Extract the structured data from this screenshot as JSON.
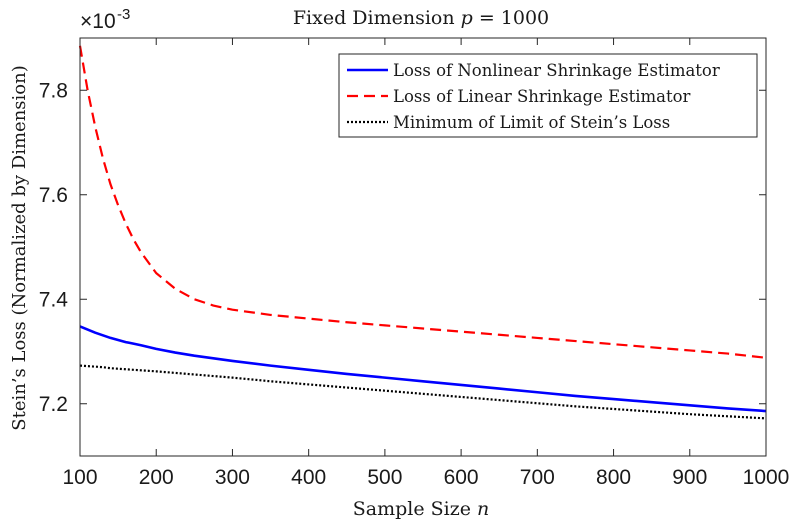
{
  "chart_data": {
    "type": "line",
    "title": "Fixed Dimension p = 1000",
    "xlabel": "Sample Size n",
    "ylabel": "Stein’s Loss (Normalized by Dimension)",
    "y_exponent_label": "×10",
    "y_exponent_power": "-3",
    "xlim": [
      100,
      1000
    ],
    "ylim": [
      7.1,
      7.9
    ],
    "x_ticks": [
      100,
      200,
      300,
      400,
      500,
      600,
      700,
      800,
      900,
      1000
    ],
    "x_tick_labels": [
      "100",
      "200",
      "300",
      "400",
      "500",
      "600",
      "700",
      "800",
      "900",
      "1000"
    ],
    "y_ticks": [
      7.2,
      7.4,
      7.6,
      7.8
    ],
    "y_tick_labels": [
      "7.2",
      "7.4",
      "7.6",
      "7.8"
    ],
    "grid": false,
    "legend_position": "top-right",
    "x": [
      100,
      110,
      120,
      130,
      140,
      150,
      160,
      170,
      180,
      200,
      225,
      250,
      275,
      300,
      350,
      400,
      450,
      500,
      550,
      600,
      650,
      700,
      750,
      800,
      850,
      900,
      950,
      1000
    ],
    "series": [
      {
        "name": "Loss of Nonlinear Shrinkage Estimator",
        "color": "#0000ff",
        "style": "solid",
        "values": [
          7.348,
          7.342,
          7.336,
          7.331,
          7.326,
          7.322,
          7.318,
          7.315,
          7.312,
          7.305,
          7.298,
          7.292,
          7.287,
          7.282,
          7.273,
          7.265,
          7.257,
          7.25,
          7.243,
          7.236,
          7.229,
          7.222,
          7.215,
          7.209,
          7.203,
          7.197,
          7.191,
          7.186
        ]
      },
      {
        "name": "Loss of Linear Shrinkage Estimator",
        "color": "#ff0000",
        "style": "dashed",
        "values": [
          7.885,
          7.8,
          7.73,
          7.67,
          7.62,
          7.58,
          7.545,
          7.515,
          7.49,
          7.45,
          7.42,
          7.4,
          7.388,
          7.38,
          7.37,
          7.363,
          7.356,
          7.35,
          7.344,
          7.338,
          7.332,
          7.326,
          7.32,
          7.314,
          7.308,
          7.302,
          7.296,
          7.288
        ]
      },
      {
        "name": "Minimum of Limit of Stein’s Loss",
        "color": "#000000",
        "style": "dotted",
        "values": [
          7.273,
          7.272,
          7.271,
          7.27,
          7.268,
          7.267,
          7.266,
          7.265,
          7.264,
          7.262,
          7.259,
          7.256,
          7.253,
          7.25,
          7.243,
          7.237,
          7.231,
          7.225,
          7.219,
          7.213,
          7.207,
          7.201,
          7.195,
          7.19,
          7.185,
          7.18,
          7.176,
          7.172
        ]
      }
    ]
  }
}
